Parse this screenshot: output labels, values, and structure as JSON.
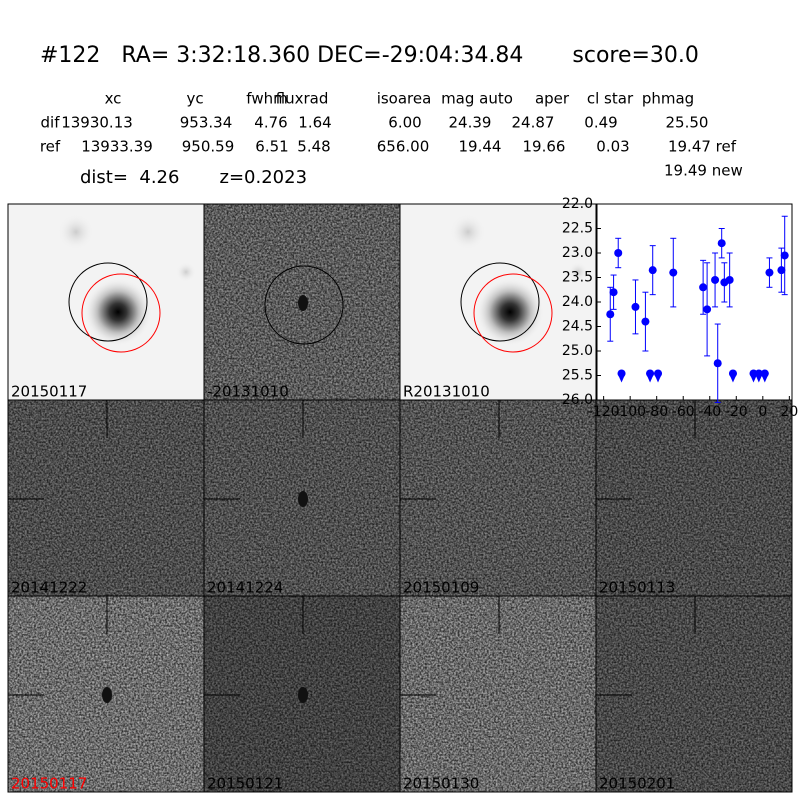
{
  "header": {
    "title": "#122   RA= 3:32:18.360 DEC=-29:04:34.84       score=30.0",
    "distance": "dist=  4.26       z=0.2023"
  },
  "table": {
    "columns": [
      "xc",
      "yc",
      "fwhm",
      "fluxrad",
      "isoarea",
      "mag auto",
      "aper",
      "cl star",
      "phmag"
    ],
    "rows": [
      [
        "dif",
        "13930.13",
        "953.34",
        "4.76",
        "1.64",
        "6.00",
        "24.39",
        "24.87",
        "0.49",
        "25.50"
      ],
      [
        "ref",
        "13933.39",
        "950.59",
        "6.51",
        "5.48",
        "656.00",
        "19.44",
        "19.66",
        "0.03",
        "19.47 ref"
      ]
    ],
    "extra": "19.49 new"
  },
  "panels": [
    "20150117",
    "-20131010",
    "R20131010",
    "20141222",
    "20141224",
    "20150109",
    "20150113",
    "20150117",
    "20150121",
    "20150130",
    "20150201"
  ],
  "chart_data": {
    "type": "scatter",
    "xlim": [
      -125,
      22
    ],
    "ylim": [
      26,
      22
    ],
    "xticks": [
      -120,
      -100,
      -80,
      -60,
      -40,
      -20,
      0,
      20
    ],
    "yticks": [
      {
        "value": 22,
        "label": "22.0"
      },
      22.5,
      {
        "value": 23,
        "label": "23.0"
      },
      23.5,
      {
        "value": 24,
        "label": "24.0"
      },
      24.5,
      {
        "value": 25,
        "label": "25.0"
      },
      25.5,
      {
        "value": 26,
        "label": "26.0"
      }
    ],
    "series": [
      {
        "color": "#0000ff",
        "x": [
          -115,
          -112.5,
          -109,
          -96,
          -88.5,
          -83,
          -67.5,
          -45,
          -42,
          -36,
          -34,
          -31,
          -29,
          -25,
          5,
          14,
          16.5
        ],
        "values": [
          24.25,
          23.8,
          23.0,
          24.1,
          24.4,
          23.35,
          23.4,
          23.7,
          24.15,
          23.55,
          25.25,
          22.8,
          23.6,
          23.55,
          23.4,
          23.35,
          23.05
        ],
        "errors": [
          0.55,
          0.35,
          0.3,
          0.55,
          0.6,
          0.5,
          0.7,
          0.55,
          0.95,
          0.55,
          0.8,
          0.3,
          0.4,
          0.55,
          0.3,
          0.45,
          0.8
        ]
      },
      {
        "color": "#0000ff",
        "marker": "upper-limit",
        "x": [
          -106.5,
          -85,
          -79,
          -22.5,
          -7,
          -3,
          1.5
        ],
        "values": [
          25.5,
          25.5,
          25.5,
          25.5,
          25.5,
          25.5,
          25.5
        ]
      }
    ]
  }
}
